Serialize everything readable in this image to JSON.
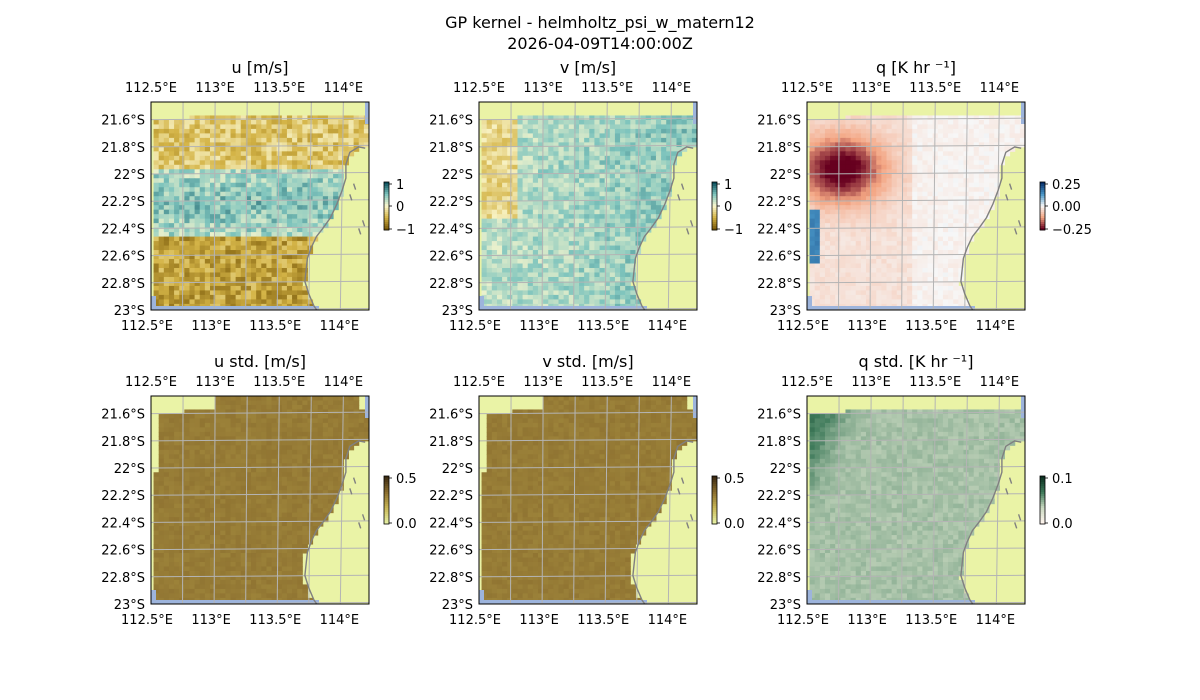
{
  "figure": {
    "title": "GP kernel - helmholtz_psi_w_matern12",
    "subtitle": "2026-04-09T14:00:00Z"
  },
  "chart_data": [
    {
      "type": "heatmap",
      "title": "u [m/s]",
      "xticks": [
        "112.5°E",
        "113°E",
        "113.5°E",
        "114°E"
      ],
      "yticks": [
        "21.6°S",
        "21.8°S",
        "22°S",
        "22.2°S",
        "22.4°S",
        "22.6°S",
        "22.8°S",
        "23°S"
      ],
      "extent": {
        "lon": [
          112.5,
          114.2
        ],
        "lat": [
          -23.0,
          -21.47
        ]
      },
      "colorbar": {
        "ticks": [
          "1",
          "0",
          "−1"
        ],
        "range": [
          -1,
          1
        ],
        "colors": [
          "#0b4f5c",
          "#7ec4bd",
          "#fbf8cf",
          "#d4b447",
          "#7a5a0a"
        ]
      },
      "field": "u",
      "colormap": "diverging-teal-olive",
      "grid": true,
      "coastline": true
    },
    {
      "type": "heatmap",
      "title": "v [m/s]",
      "xticks": [
        "112.5°E",
        "113°E",
        "113.5°E",
        "114°E"
      ],
      "yticks": [
        "21.6°S",
        "21.8°S",
        "22°S",
        "22.2°S",
        "22.4°S",
        "22.6°S",
        "22.8°S",
        "23°S"
      ],
      "extent": {
        "lon": [
          112.5,
          114.2
        ],
        "lat": [
          -23.0,
          -21.47
        ]
      },
      "colorbar": {
        "ticks": [
          "1",
          "0",
          "−1"
        ],
        "range": [
          -1,
          1
        ],
        "colors": [
          "#0b4f5c",
          "#7ec4bd",
          "#fbf8cf",
          "#d4b447",
          "#7a5a0a"
        ]
      },
      "field": "v",
      "colormap": "diverging-teal-olive",
      "grid": true,
      "coastline": true
    },
    {
      "type": "heatmap",
      "title": "q [K hr ⁻¹]",
      "xticks": [
        "112.5°E",
        "113°E",
        "113.5°E",
        "114°E"
      ],
      "yticks": [
        "21.6°S",
        "21.8°S",
        "22°S",
        "22.2°S",
        "22.4°S",
        "22.6°S",
        "22.8°S",
        "23°S"
      ],
      "extent": {
        "lon": [
          112.5,
          114.2
        ],
        "lat": [
          -23.0,
          -21.47
        ]
      },
      "colorbar": {
        "ticks": [
          "0.25",
          "0.00",
          "−0.25"
        ],
        "range": [
          -0.3,
          0.3
        ],
        "colors": [
          "#08306b",
          "#4a98c9",
          "#f7f7f7",
          "#f4a582",
          "#67001f"
        ]
      },
      "field": "q",
      "colormap": "diverging-blue-red",
      "grid": true,
      "coastline": true
    },
    {
      "type": "heatmap",
      "title": "u std. [m/s]",
      "xticks": [
        "112.5°E",
        "113°E",
        "113.5°E",
        "114°E"
      ],
      "yticks": [
        "21.6°S",
        "21.8°S",
        "22°S",
        "22.2°S",
        "22.4°S",
        "22.6°S",
        "22.8°S",
        "23°S"
      ],
      "extent": {
        "lon": [
          112.5,
          114.2
        ],
        "lat": [
          -23.0,
          -21.47
        ]
      },
      "colorbar": {
        "ticks": [
          "0.5",
          "0.0"
        ],
        "range": [
          0,
          0.5
        ],
        "colors": [
          "#3b2a12",
          "#8a6d2e",
          "#c7b555",
          "#e6f0a3"
        ]
      },
      "field": "u_std",
      "colormap": "sequential-olive",
      "grid": true,
      "coastline": true
    },
    {
      "type": "heatmap",
      "title": "v std. [m/s]",
      "xticks": [
        "112.5°E",
        "113°E",
        "113.5°E",
        "114°E"
      ],
      "yticks": [
        "21.6°S",
        "21.8°S",
        "22°S",
        "22.2°S",
        "22.4°S",
        "22.6°S",
        "22.8°S",
        "23°S"
      ],
      "extent": {
        "lon": [
          112.5,
          114.2
        ],
        "lat": [
          -23.0,
          -21.47
        ]
      },
      "colorbar": {
        "ticks": [
          "0.5",
          "0.0"
        ],
        "range": [
          0,
          0.5
        ],
        "colors": [
          "#3b2a12",
          "#8a6d2e",
          "#c7b555",
          "#e6f0a3"
        ]
      },
      "field": "v_std",
      "colormap": "sequential-olive",
      "grid": true,
      "coastline": true
    },
    {
      "type": "heatmap",
      "title": "q std. [K hr ⁻¹]",
      "xticks": [
        "112.5°E",
        "113°E",
        "113.5°E",
        "114°E"
      ],
      "yticks": [
        "21.6°S",
        "21.8°S",
        "22°S",
        "22.2°S",
        "22.4°S",
        "22.6°S",
        "22.8°S",
        "23°S"
      ],
      "extent": {
        "lon": [
          112.5,
          114.2
        ],
        "lat": [
          -23.0,
          -21.47
        ]
      },
      "colorbar": {
        "ticks": [
          "0.1",
          "0.0"
        ],
        "range": [
          0,
          0.12
        ],
        "colors": [
          "#0a2e1f",
          "#3e7a5a",
          "#c8d8c0",
          "#fff5ee"
        ]
      },
      "field": "q_std",
      "colormap": "sequential-green-rose",
      "grid": true,
      "coastline": true
    }
  ],
  "colors": {
    "ocean_nodata": "#9db4dc",
    "land": "#eaf3a6",
    "coastline": "#808080",
    "gridlines": "#b4b4b4"
  }
}
